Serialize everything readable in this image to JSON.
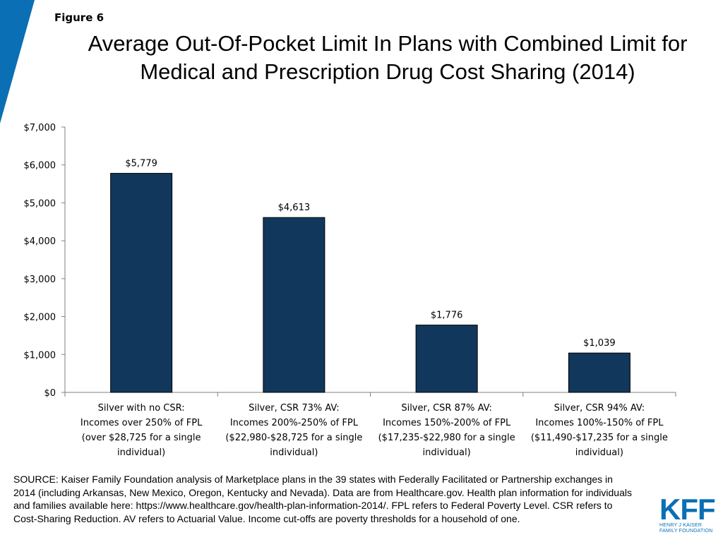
{
  "header": {
    "figure_label": "Figure 6",
    "title": "Average Out-Of-Pocket Limit In Plans with Combined Limit for Medical and Prescription Drug Cost Sharing (2014)"
  },
  "colors": {
    "accent": "#0a6fb5",
    "bar": "#12375c",
    "axis": "#7f7f7f"
  },
  "chart_data": {
    "type": "bar",
    "title": "Average Out-Of-Pocket Limit In Plans with Combined Limit for Medical and Prescription Drug Cost Sharing (2014)",
    "categories": [
      [
        "Silver with no CSR:",
        "Incomes over 250% of FPL",
        "(over $28,725 for a single",
        "individual)"
      ],
      [
        "Silver, CSR 73% AV:",
        "Incomes 200%-250% of FPL",
        "($22,980-$28,725 for a single",
        "individual)"
      ],
      [
        "Silver, CSR 87% AV:",
        "Incomes 150%-200% of FPL",
        "($17,235-$22,980 for a single",
        "individual)"
      ],
      [
        "Silver, CSR 94% AV:",
        "Incomes 100%-150% of FPL",
        "($11,490-$17,235 for a single",
        "individual)"
      ]
    ],
    "values": [
      5779,
      4613,
      1776,
      1039
    ],
    "value_labels": [
      "$5,779",
      "$4,613",
      "$1,776",
      "$1,039"
    ],
    "ylim": [
      0,
      7000
    ],
    "yticks": [
      0,
      1000,
      2000,
      3000,
      4000,
      5000,
      6000,
      7000
    ],
    "ytick_labels": [
      "$0",
      "$1,000",
      "$2,000",
      "$3,000",
      "$4,000",
      "$5,000",
      "$6,000",
      "$7,000"
    ],
    "xlabel": "",
    "ylabel": "",
    "grid": false,
    "legend": "none"
  },
  "source_text": "SOURCE: Kaiser Family Foundation analysis of Marketplace plans in the 39 states with Federally Facilitated or Partnership exchanges in 2014 (including Arkansas, New Mexico, Oregon, Kentucky and Nevada). Data are from Healthcare.gov. Health plan information for individuals and families available here: https://www.healthcare.gov/health-plan-information-2014/. FPL refers to Federal Poverty Level. CSR refers to Cost-Sharing Reduction. AV refers to Actuarial Value. Income cut-offs are poverty thresholds for a household of one.",
  "logo": {
    "mark": "KFF",
    "line1": "HENRY J KAISER",
    "line2": "FAMILY FOUNDATION"
  }
}
